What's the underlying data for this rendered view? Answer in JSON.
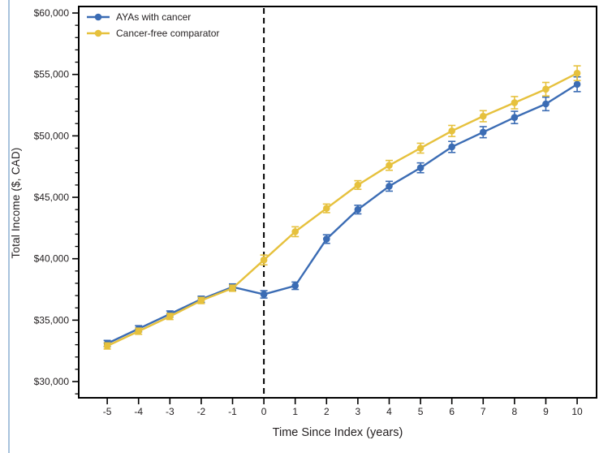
{
  "figure": {
    "accent_border_color": "#a8c3dd",
    "background_color": "#ffffff",
    "text_color": "#231f20"
  },
  "legend": {
    "items": [
      {
        "label": "AYAs with cancer",
        "color": "#3b6cb4"
      },
      {
        "label": "Cancer-free comparator",
        "color": "#e6c13d"
      }
    ]
  },
  "chart_data": {
    "type": "line",
    "title": "",
    "xlabel": "Time Since Index (years)",
    "ylabel": "Total Income ($, CAD)",
    "x": [
      -5,
      -4,
      -3,
      -2,
      -1,
      0,
      1,
      2,
      3,
      4,
      5,
      6,
      7,
      8,
      9,
      10
    ],
    "x_tick_labels": [
      "-5",
      "-4",
      "-3",
      "-2",
      "-1",
      "0",
      "1",
      "2",
      "3",
      "4",
      "5",
      "6",
      "7",
      "8",
      "9",
      "10"
    ],
    "y_major_ticks": [
      30000,
      35000,
      40000,
      45000,
      50000,
      55000,
      60000
    ],
    "y_tick_labels": [
      "$30,000",
      "$35,000",
      "$40,000",
      "$45,000",
      "$50,000",
      "$55,000",
      "$60,000"
    ],
    "y_minor_step": 1000,
    "y_minor_range": [
      29000,
      60000
    ],
    "xlim": [
      -5.91,
      10.62
    ],
    "ylim": [
      28680,
      60530
    ],
    "grid": false,
    "legend_position": "top-left",
    "reference_line_x": 0,
    "error_bars": true,
    "series": [
      {
        "name": "AYAs with cancer",
        "color": "#3b6cb4",
        "values": [
          33100,
          34300,
          35500,
          36700,
          37700,
          37100,
          37800,
          41600,
          44000,
          45900,
          47400,
          49100,
          50300,
          51500,
          52600,
          54200
        ],
        "errors": [
          250,
          250,
          250,
          250,
          250,
          300,
          300,
          350,
          350,
          400,
          400,
          450,
          450,
          500,
          550,
          600
        ]
      },
      {
        "name": "Cancer-free comparator",
        "color": "#e6c13d",
        "values": [
          32900,
          34100,
          35300,
          36600,
          37600,
          39900,
          42200,
          44100,
          46000,
          47600,
          49000,
          50400,
          51600,
          52700,
          53800,
          55100
        ],
        "errors": [
          250,
          250,
          250,
          250,
          250,
          400,
          400,
          350,
          350,
          400,
          400,
          450,
          450,
          500,
          550,
          600
        ]
      }
    ]
  }
}
